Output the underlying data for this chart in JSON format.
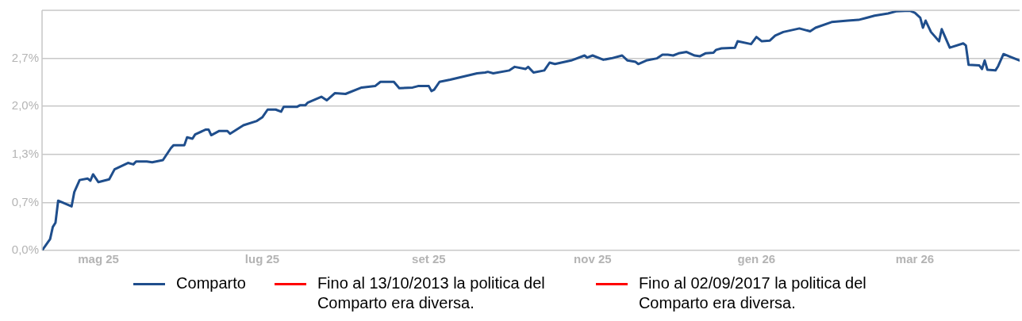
{
  "chart_data": {
    "type": "line",
    "xlim": [
      "2025-04-10",
      "2026-04-09"
    ],
    "xticks": [
      {
        "value": "2025-05-01",
        "label": "mag 25"
      },
      {
        "value": "2025-07-01",
        "label": "lug 25"
      },
      {
        "value": "2025-09-01",
        "label": "set 25"
      },
      {
        "value": "2025-11-01",
        "label": "nov 25"
      },
      {
        "value": "2026-01-01",
        "label": "gen 26"
      },
      {
        "value": "2026-03-01",
        "label": "mar 26"
      }
    ],
    "ylim": [
      0,
      3.375
    ],
    "yticks": [
      {
        "value": 0,
        "label": "0,0%"
      },
      {
        "value": 0.675,
        "label": "0,7%"
      },
      {
        "value": 1.35,
        "label": "1,3%"
      },
      {
        "value": 2.025,
        "label": "2,0%"
      },
      {
        "value": 2.7,
        "label": "2,7%"
      }
    ],
    "grid": "y",
    "legend": "bottom",
    "marker": "none",
    "line_style": "solid",
    "series": [
      {
        "name": "Comparto",
        "color": "#1f4e8c",
        "x": [
          "2025-04-10",
          "2025-04-13",
          "2025-04-14",
          "2025-04-15",
          "2025-04-16",
          "2025-04-21",
          "2025-04-22",
          "2025-04-24",
          "2025-04-27",
          "2025-04-28",
          "2025-04-29",
          "2025-05-01",
          "2025-05-05",
          "2025-05-07",
          "2025-05-12",
          "2025-05-14",
          "2025-05-15",
          "2025-05-19",
          "2025-05-21",
          "2025-05-25",
          "2025-05-28",
          "2025-05-29",
          "2025-06-02",
          "2025-06-03",
          "2025-06-05",
          "2025-06-06",
          "2025-06-10",
          "2025-06-11",
          "2025-06-12",
          "2025-06-15",
          "2025-06-18",
          "2025-06-19",
          "2025-06-24",
          "2025-06-29",
          "2025-07-01",
          "2025-07-03",
          "2025-07-06",
          "2025-07-08",
          "2025-07-09",
          "2025-07-14",
          "2025-07-15",
          "2025-07-17",
          "2025-07-18",
          "2025-07-23",
          "2025-07-25",
          "2025-07-28",
          "2025-08-01",
          "2025-08-07",
          "2025-08-12",
          "2025-08-14",
          "2025-08-19",
          "2025-08-21",
          "2025-08-26",
          "2025-08-28",
          "2025-09-01",
          "2025-09-02",
          "2025-09-03",
          "2025-09-05",
          "2025-09-09",
          "2025-09-19",
          "2025-09-22",
          "2025-09-23",
          "2025-09-25",
          "2025-10-01",
          "2025-10-03",
          "2025-10-07",
          "2025-10-08",
          "2025-10-10",
          "2025-10-14",
          "2025-10-16",
          "2025-10-18",
          "2025-10-24",
          "2025-10-29",
          "2025-10-30",
          "2025-11-01",
          "2025-11-05",
          "2025-11-08",
          "2025-11-12",
          "2025-11-14",
          "2025-11-17",
          "2025-11-18",
          "2025-11-21",
          "2025-11-25",
          "2025-11-27",
          "2025-11-29",
          "2025-12-01",
          "2025-12-03",
          "2025-12-06",
          "2025-12-09",
          "2025-12-11",
          "2025-12-13",
          "2025-12-16",
          "2025-12-17",
          "2025-12-19",
          "2025-12-24",
          "2025-12-25",
          "2025-12-30",
          "2026-01-01",
          "2026-01-03",
          "2026-01-06",
          "2026-01-08",
          "2026-01-11",
          "2026-01-17",
          "2026-01-21",
          "2026-01-23",
          "2026-01-29",
          "2026-02-04",
          "2026-02-08",
          "2026-02-11",
          "2026-02-14",
          "2026-02-19",
          "2026-02-22",
          "2026-02-27",
          "2026-03-01",
          "2026-03-03",
          "2026-03-04",
          "2026-03-05",
          "2026-03-07",
          "2026-03-10",
          "2026-03-11",
          "2026-03-14",
          "2026-03-19",
          "2026-03-20",
          "2026-03-21",
          "2026-03-25",
          "2026-03-26",
          "2026-03-27",
          "2026-03-28",
          "2026-03-31",
          "2026-04-01",
          "2026-04-03",
          "2026-04-09"
        ],
        "values": [
          0,
          0.16,
          0.33,
          0.39,
          0.7,
          0.62,
          0.82,
          0.99,
          1.01,
          0.98,
          1.07,
          0.96,
          1.0,
          1.14,
          1.23,
          1.21,
          1.25,
          1.25,
          1.24,
          1.27,
          1.44,
          1.48,
          1.48,
          1.59,
          1.57,
          1.63,
          1.7,
          1.7,
          1.62,
          1.68,
          1.68,
          1.64,
          1.76,
          1.82,
          1.87,
          1.98,
          1.98,
          1.95,
          2.02,
          2.02,
          2.04,
          2.04,
          2.08,
          2.16,
          2.11,
          2.21,
          2.2,
          2.29,
          2.31,
          2.37,
          2.37,
          2.28,
          2.29,
          2.31,
          2.31,
          2.24,
          2.26,
          2.37,
          2.4,
          2.49,
          2.5,
          2.51,
          2.49,
          2.53,
          2.58,
          2.55,
          2.58,
          2.5,
          2.53,
          2.64,
          2.62,
          2.67,
          2.74,
          2.71,
          2.74,
          2.68,
          2.7,
          2.74,
          2.67,
          2.65,
          2.62,
          2.67,
          2.7,
          2.75,
          2.75,
          2.74,
          2.77,
          2.79,
          2.74,
          2.73,
          2.77,
          2.78,
          2.82,
          2.84,
          2.85,
          2.94,
          2.9,
          3.0,
          2.94,
          2.95,
          3.02,
          3.07,
          3.12,
          3.08,
          3.13,
          3.21,
          3.23,
          3.24,
          3.27,
          3.3,
          3.33,
          3.36,
          3.37,
          3.34,
          3.27,
          3.13,
          3.23,
          3.07,
          2.94,
          3.11,
          2.85,
          2.91,
          2.88,
          2.61,
          2.6,
          2.55,
          2.67,
          2.54,
          2.53,
          2.59,
          2.76,
          2.67
        ]
      },
      {
        "name": "Fino al 13/10/2013 la politica del Comparto era diversa.",
        "color": "#ff0000"
      },
      {
        "name": "Fino al 02/09/2017 la politica del Comparto era diversa.",
        "color": "#ff0000"
      }
    ]
  }
}
